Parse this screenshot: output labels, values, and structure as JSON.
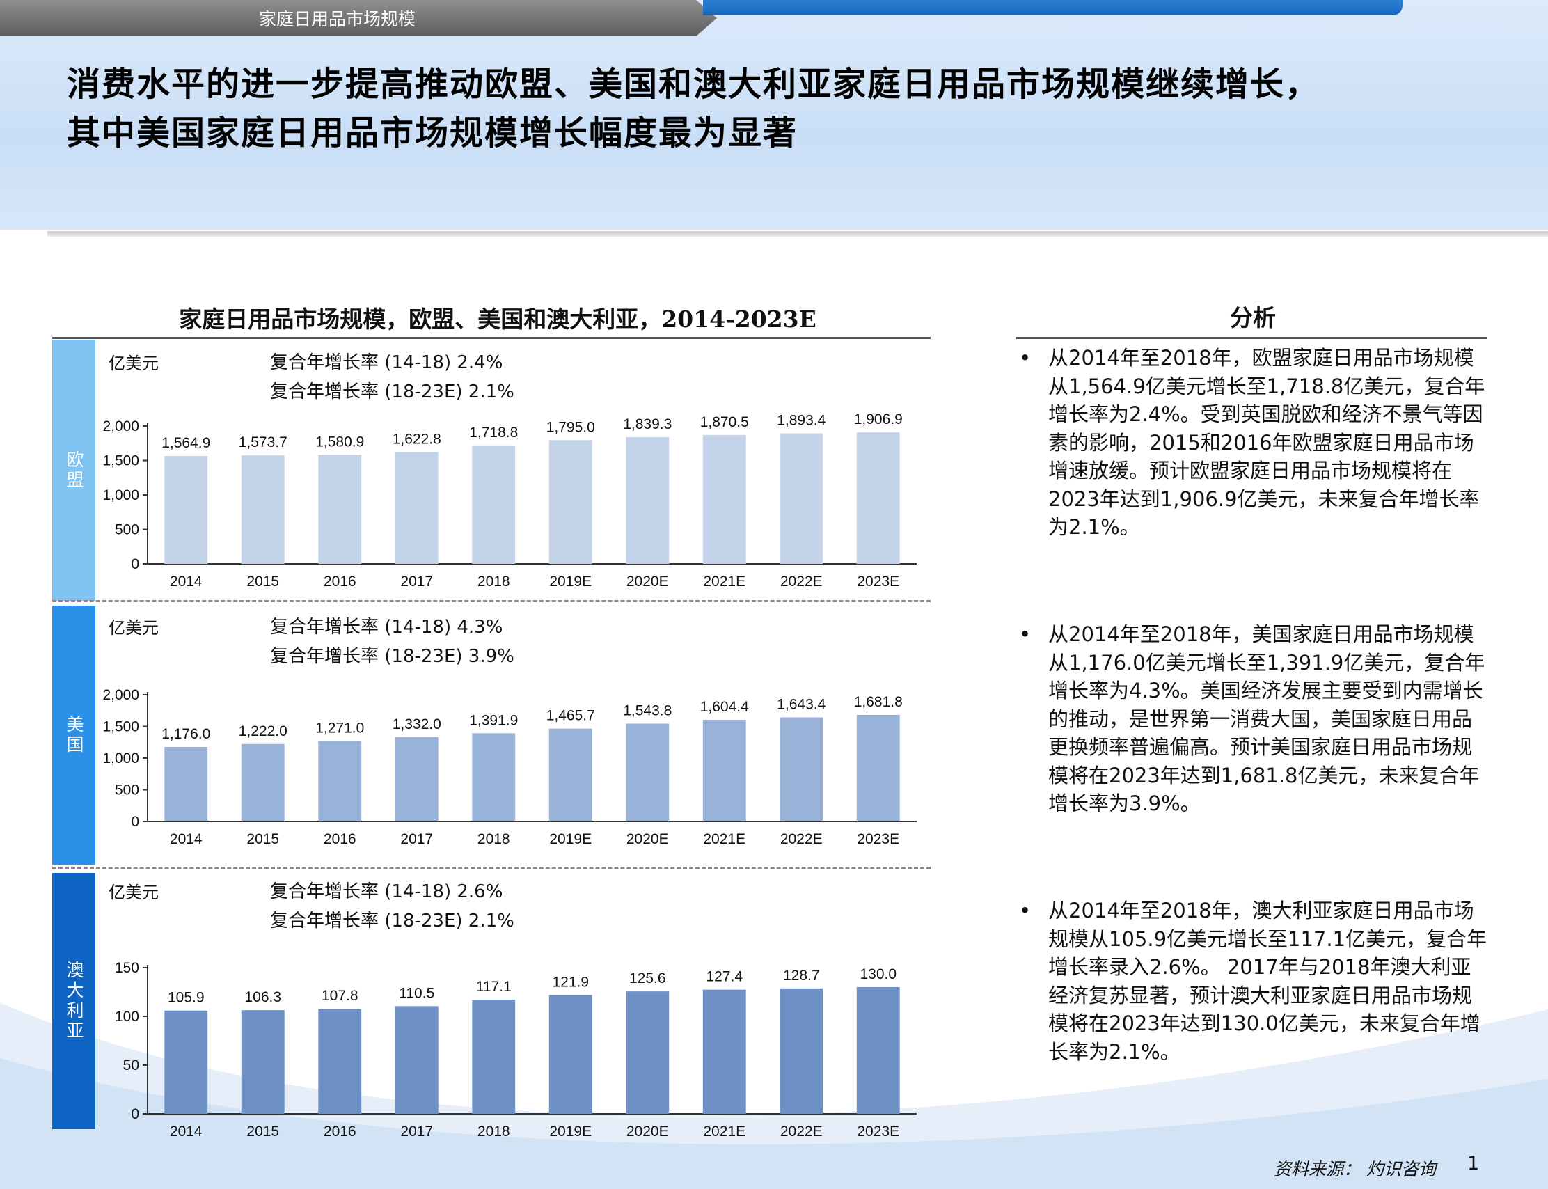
{
  "header": {
    "section_tag": "家庭日用品市场规模",
    "title_line1": "消费水平的进一步提高推动欧盟、美国和澳大利亚家庭日用品市场规模继续增长，",
    "title_line2": "其中美国家庭日用品市场规模增长幅度最为显著"
  },
  "chart_heading": "家庭日用品市场规模，欧盟、美国和澳大利亚，2014-2023E",
  "panels": [
    {
      "region": "欧盟",
      "unit": "亿美元",
      "cagr1": "复合年增长率 (14-18) 2.4%",
      "cagr2": "复合年增长率 (18-23E) 2.1%",
      "band_color": "#7ec3f2"
    },
    {
      "region": "美国",
      "unit": "亿美元",
      "cagr1": "复合年增长率 (14-18) 4.3%",
      "cagr2": "复合年增长率 (18-23E) 3.9%",
      "band_color": "#2a90e8"
    },
    {
      "region": "澳大利亚",
      "unit": "亿美元",
      "cagr1": "复合年增长率 (14-18) 2.6%",
      "cagr2": "复合年增长率 (18-23E) 2.1%",
      "band_color": "#0d64c2"
    }
  ],
  "chart_data": [
    {
      "type": "bar",
      "categories": [
        "2014",
        "2015",
        "2016",
        "2017",
        "2018",
        "2019E",
        "2020E",
        "2021E",
        "2022E",
        "2023E"
      ],
      "values": [
        1564.9,
        1573.7,
        1580.9,
        1622.8,
        1718.8,
        1795.0,
        1839.3,
        1870.5,
        1893.4,
        1906.9
      ],
      "value_labels": [
        "1,564.9",
        "1,573.7",
        "1,580.9",
        "1,622.8",
        "1,718.8",
        "1,795.0",
        "1,839.3",
        "1,870.5",
        "1,893.4",
        "1,906.9"
      ],
      "ylim": [
        0,
        2000
      ],
      "yticks": [
        0,
        500,
        1000,
        1500,
        2000
      ],
      "ytick_labels": [
        "0",
        "500",
        "1,000",
        "1,500",
        "2,000"
      ],
      "bar_color": "#c3d3ea",
      "grid": false
    },
    {
      "type": "bar",
      "categories": [
        "2014",
        "2015",
        "2016",
        "2017",
        "2018",
        "2019E",
        "2020E",
        "2021E",
        "2022E",
        "2023E"
      ],
      "values": [
        1176.0,
        1222.0,
        1271.0,
        1332.0,
        1391.9,
        1465.7,
        1543.8,
        1604.4,
        1643.4,
        1681.8
      ],
      "value_labels": [
        "1,176.0",
        "1,222.0",
        "1,271.0",
        "1,332.0",
        "1,391.9",
        "1,465.7",
        "1,543.8",
        "1,604.4",
        "1,643.4",
        "1,681.8"
      ],
      "ylim": [
        0,
        2000
      ],
      "yticks": [
        0,
        500,
        1000,
        1500,
        2000
      ],
      "ytick_labels": [
        "0",
        "500",
        "1,000",
        "1,500",
        "2,000"
      ],
      "bar_color": "#98b2d8",
      "grid": false
    },
    {
      "type": "bar",
      "categories": [
        "2014",
        "2015",
        "2016",
        "2017",
        "2018",
        "2019E",
        "2020E",
        "2021E",
        "2022E",
        "2023E"
      ],
      "values": [
        105.9,
        106.3,
        107.8,
        110.5,
        117.1,
        121.9,
        125.6,
        127.4,
        128.7,
        130.0
      ],
      "value_labels": [
        "105.9",
        "106.3",
        "107.8",
        "110.5",
        "117.1",
        "121.9",
        "125.6",
        "127.4",
        "128.7",
        "130.0"
      ],
      "ylim": [
        0,
        150
      ],
      "yticks": [
        0,
        50,
        100,
        150
      ],
      "ytick_labels": [
        "0",
        "50",
        "100",
        "150"
      ],
      "bar_color": "#6d91c4",
      "grid": false
    }
  ],
  "analysis": {
    "heading": "分析",
    "bullet_symbol": "•",
    "bullets": [
      "从2014年至2018年，欧盟家庭日用品市场规模从1,564.9亿美元增长至1,718.8亿美元，复合年增长率为2.4%。受到英国脱欧和经济不景气等因素的影响，2015和2016年欧盟家庭日用品市场增速放缓。预计欧盟家庭日用品市场规模将在2023年达到1,906.9亿美元，未来复合年增长率为2.1%。",
      "从2014年至2018年，美国家庭日用品市场规模从1,176.0亿美元增长至1,391.9亿美元，复合年增长率为4.3%。美国经济发展主要受到内需增长的推动，是世界第一消费大国，美国家庭日用品更换频率普遍偏高。预计美国家庭日用品市场规模将在2023年达到1,681.8亿美元，未来复合年增长率为3.9%。",
      "从2014年至2018年，澳大利亚家庭日用品市场规模从105.9亿美元增长至117.1亿美元，复合年增长率录入2.6%。 2017年与2018年澳大利亚经济复苏显著，预计澳大利亚家庭日用品市场规模将在2023年达到130.0亿美元，未来复合年增长率为2.1%。"
    ]
  },
  "footer": {
    "source": "资料来源： 灼识咨询",
    "page_number": "1"
  }
}
